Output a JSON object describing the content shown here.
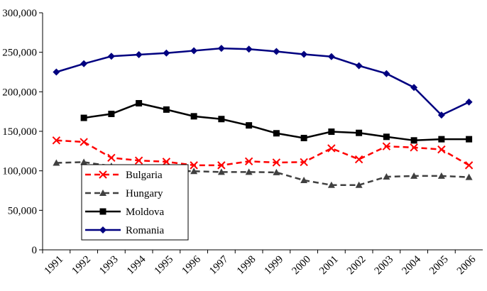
{
  "chart_data": {
    "type": "line",
    "categories": [
      "1991",
      "1992",
      "1993",
      "1994",
      "1995",
      "1996",
      "1997",
      "1998",
      "1999",
      "2000",
      "2001",
      "2002",
      "2003",
      "2004",
      "2005",
      "2006"
    ],
    "series": [
      {
        "name": "Bulgaria",
        "color": "#ff0000",
        "marker": "x",
        "dashed": true,
        "values": [
          138500,
          136500,
          116500,
          113000,
          111500,
          107000,
          107000,
          112000,
          110500,
          111000,
          128500,
          114500,
          131000,
          129500,
          127000,
          107000
        ]
      },
      {
        "name": "Hungary",
        "color": "#404040",
        "marker": "triangle",
        "dashed": true,
        "values": [
          110000,
          111000,
          106000,
          103000,
          100000,
          99500,
          98500,
          98500,
          98000,
          88000,
          82000,
          82000,
          92500,
          93500,
          93500,
          92000
        ]
      },
      {
        "name": "Moldova",
        "color": "#000000",
        "marker": "square",
        "dashed": false,
        "values": [
          null,
          167000,
          172000,
          185500,
          177500,
          169000,
          165500,
          157500,
          147500,
          141500,
          149500,
          148000,
          143000,
          138500,
          140000,
          140000
        ]
      },
      {
        "name": "Romania",
        "color": "#000080",
        "marker": "diamond",
        "dashed": false,
        "values": [
          225000,
          235500,
          245000,
          247000,
          249000,
          252000,
          255000,
          254000,
          251000,
          247500,
          244500,
          233000,
          223000,
          205500,
          170500,
          187000
        ]
      }
    ],
    "ylim": [
      0,
      300000
    ],
    "yticks": [
      0,
      {
        "value": 50000,
        "label": "50,000"
      },
      {
        "value": 100000,
        "label": "100,000"
      },
      {
        "value": 150000,
        "label": "150,000"
      },
      {
        "value": 200000,
        "label": "200,000"
      },
      {
        "value": 250000,
        "label": "250,000"
      },
      {
        "value": 300000,
        "label": "300,000"
      }
    ],
    "grid": false,
    "legend": "lower-left"
  }
}
